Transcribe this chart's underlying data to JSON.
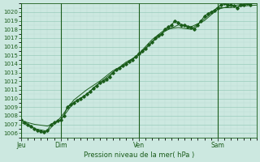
{
  "xlabel": "Pression niveau de la mer( hPa )",
  "background_color": "#cce8e0",
  "grid_color_major": "#99ccbb",
  "grid_color_minor": "#bbddd4",
  "line_color": "#1a5c1a",
  "ylim": [
    1005.5,
    1021.0
  ],
  "yticks": [
    1006,
    1007,
    1008,
    1009,
    1010,
    1011,
    1012,
    1013,
    1014,
    1015,
    1016,
    1017,
    1018,
    1019,
    1020
  ],
  "day_labels": [
    "Jeu",
    "Dim",
    "Ven",
    "Sam"
  ],
  "day_positions": [
    0,
    36,
    108,
    180
  ],
  "xlim": [
    0,
    216
  ],
  "series1_x": [
    0,
    3,
    6,
    9,
    12,
    15,
    18,
    21,
    24,
    27,
    30,
    33,
    36,
    39,
    42,
    45,
    48,
    51,
    54,
    57,
    60,
    63,
    66,
    69,
    72,
    75,
    78,
    81,
    84,
    87,
    90,
    93,
    96,
    99,
    102,
    105,
    108,
    111,
    114,
    117,
    120,
    123,
    126,
    129,
    132,
    135,
    138,
    141,
    144,
    147,
    150,
    153,
    156,
    159,
    162,
    165,
    168,
    171,
    174,
    177,
    180,
    183,
    186,
    189,
    192,
    195,
    198,
    201,
    204,
    207,
    210
  ],
  "series1_y": [
    1007.5,
    1007.2,
    1007.0,
    1006.8,
    1006.5,
    1006.3,
    1006.2,
    1006.1,
    1006.3,
    1007.0,
    1007.2,
    1007.4,
    1007.5,
    1008.0,
    1009.0,
    1009.3,
    1009.5,
    1009.8,
    1010.0,
    1010.2,
    1010.5,
    1010.8,
    1011.2,
    1011.5,
    1011.8,
    1012.0,
    1012.2,
    1012.5,
    1013.0,
    1013.3,
    1013.5,
    1013.8,
    1014.0,
    1014.3,
    1014.5,
    1014.8,
    1015.2,
    1015.5,
    1015.8,
    1016.2,
    1016.5,
    1017.0,
    1017.3,
    1017.5,
    1018.0,
    1018.3,
    1018.5,
    1019.0,
    1018.8,
    1018.5,
    1018.5,
    1018.3,
    1018.2,
    1018.0,
    1018.5,
    1019.0,
    1019.5,
    1019.8,
    1020.0,
    1020.2,
    1020.5,
    1020.8,
    1021.0,
    1020.8,
    1020.8,
    1020.7,
    1020.5,
    1020.8,
    1020.8,
    1021.0,
    1020.8
  ],
  "series2_x": [
    0,
    12,
    24,
    36,
    48,
    60,
    72,
    84,
    96,
    108,
    120,
    132,
    144,
    156,
    168,
    180,
    192,
    204,
    216
  ],
  "series2_y": [
    1007.4,
    1007.0,
    1006.8,
    1007.5,
    1009.5,
    1010.5,
    1011.8,
    1013.0,
    1014.2,
    1015.0,
    1016.5,
    1017.8,
    1018.5,
    1018.3,
    1019.0,
    1020.3,
    1020.7,
    1020.9,
    1021.0
  ],
  "series3_x": [
    0,
    12,
    24,
    36,
    48,
    60,
    72,
    84,
    96,
    108,
    120,
    132,
    144,
    156,
    168,
    180,
    192,
    204,
    216
  ],
  "series3_y": [
    1007.2,
    1006.5,
    1006.2,
    1007.8,
    1009.8,
    1011.0,
    1012.0,
    1013.2,
    1014.0,
    1015.2,
    1016.8,
    1018.0,
    1018.2,
    1018.0,
    1019.2,
    1020.5,
    1020.5,
    1020.7,
    1020.8
  ]
}
